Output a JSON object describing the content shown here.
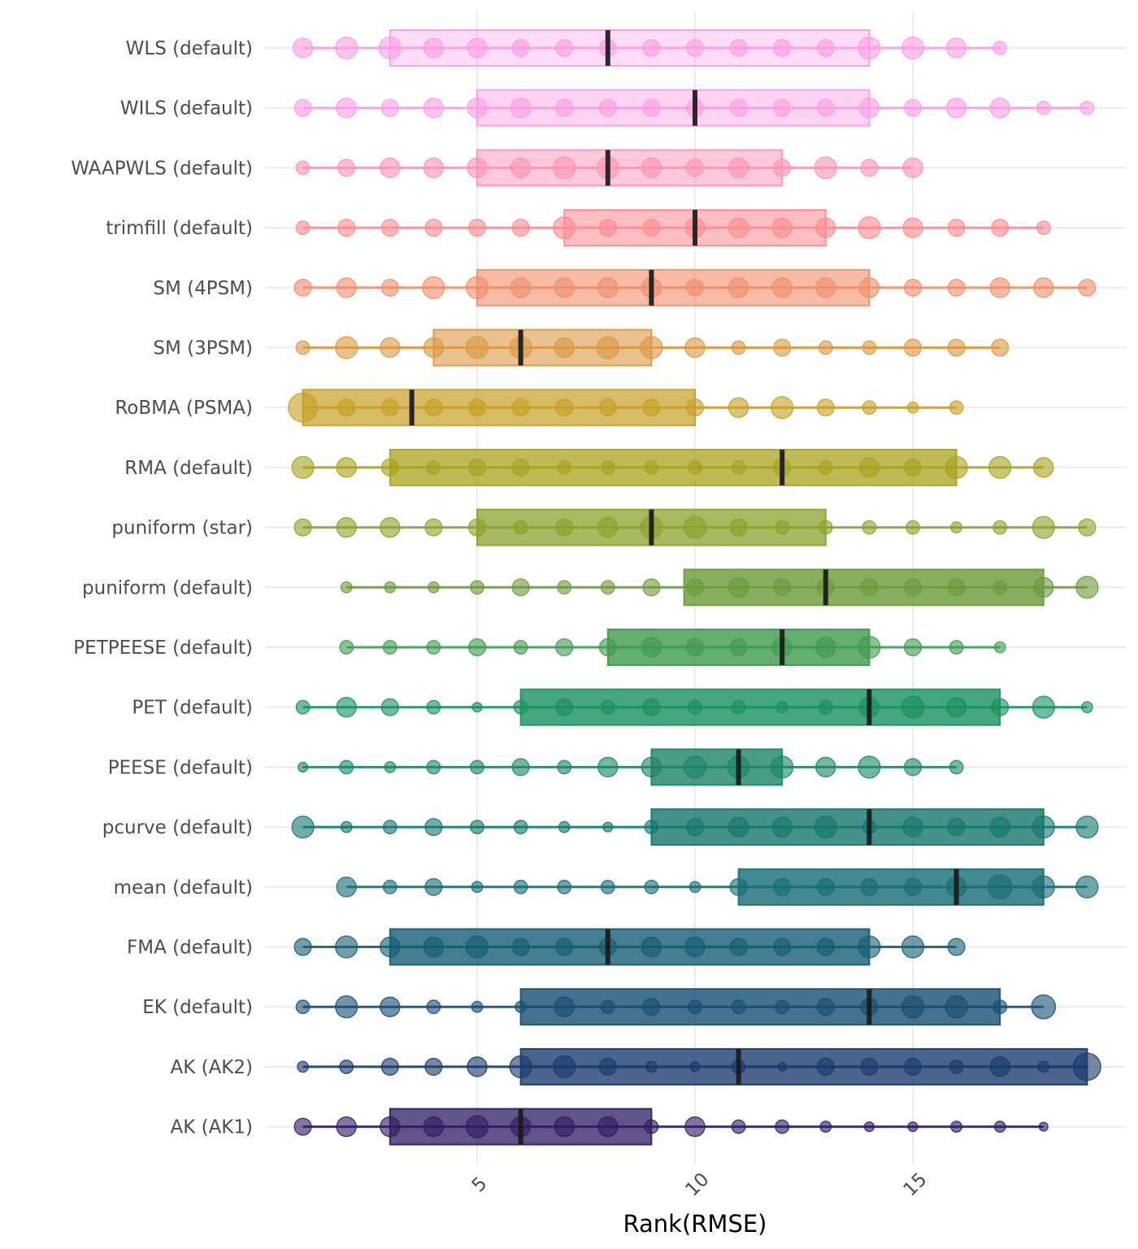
{
  "chart_data": {
    "type": "scatter",
    "subtype": "ranked dot plot with interquartile boxes and median markers",
    "title": "",
    "xlabel": "Rank(RMSE)",
    "ylabel": "",
    "xlim": [
      1,
      19
    ],
    "x_ticks": [
      5,
      10,
      15
    ],
    "x_tick_labels": [
      "5",
      "10",
      "15"
    ],
    "grid": true,
    "legend": "none",
    "categories": [
      "WLS (default)",
      "WILS (default)",
      "WAAPWLS (default)",
      "trimfill (default)",
      "SM (4PSM)",
      "SM (3PSM)",
      "RoBMA (PSMA)",
      "RMA (default)",
      "puniform (star)",
      "puniform (default)",
      "PETPEESE (default)",
      "PET (default)",
      "PEESE (default)",
      "pcurve (default)",
      "mean (default)",
      "FMA (default)",
      "EK (default)",
      "AK (AK2)",
      "AK (AK1)"
    ],
    "series": [
      {
        "name": "WLS (default)",
        "color": "#FF9BE3",
        "fill_alpha": 0.35,
        "q1": 3,
        "median": 8,
        "q3": 14,
        "ranks": [
          1,
          2,
          3,
          4,
          5,
          6,
          7,
          8,
          9,
          10,
          11,
          12,
          13,
          14,
          15,
          16,
          17
        ],
        "sizes": [
          3,
          4,
          4,
          3,
          3,
          2,
          2,
          2,
          2,
          2,
          2,
          2,
          2,
          4,
          4,
          3,
          1
        ]
      },
      {
        "name": "WILS (default)",
        "color": "#FF9BE3",
        "fill_alpha": 0.45,
        "q1": 5,
        "median": 10,
        "q3": 14,
        "ranks": [
          1,
          2,
          3,
          4,
          5,
          6,
          7,
          8,
          9,
          10,
          11,
          12,
          13,
          14,
          15,
          16,
          17,
          18,
          19
        ],
        "sizes": [
          2,
          3,
          2,
          3,
          3,
          3,
          2,
          2,
          2,
          2,
          2,
          2,
          2,
          3,
          2,
          3,
          3,
          1,
          1
        ]
      },
      {
        "name": "WAAPWLS (default)",
        "color": "#FF91B8",
        "fill_alpha": 0.5,
        "q1": 5,
        "median": 8,
        "q3": 12,
        "ranks": [
          1,
          2,
          3,
          4,
          5,
          6,
          7,
          8,
          9,
          10,
          11,
          12,
          13,
          14,
          15
        ],
        "sizes": [
          1,
          2,
          3,
          3,
          3,
          3,
          4,
          4,
          3,
          2,
          3,
          2,
          4,
          2,
          3
        ]
      },
      {
        "name": "trimfill (default)",
        "color": "#FF8A8F",
        "fill_alpha": 0.55,
        "q1": 7,
        "median": 10,
        "q3": 13,
        "ranks": [
          1,
          2,
          3,
          4,
          5,
          6,
          7,
          8,
          9,
          10,
          11,
          12,
          13,
          14,
          15,
          16,
          17,
          18
        ],
        "sizes": [
          1,
          2,
          2,
          2,
          2,
          2,
          4,
          2,
          2,
          3,
          3,
          3,
          3,
          4,
          3,
          2,
          2,
          1
        ]
      },
      {
        "name": "SM (4PSM)",
        "color": "#EE8E6D",
        "fill_alpha": 0.6,
        "q1": 5,
        "median": 9,
        "q3": 14,
        "ranks": [
          1,
          2,
          3,
          4,
          5,
          6,
          7,
          8,
          9,
          10,
          11,
          12,
          13,
          14,
          15,
          16,
          17,
          18,
          19
        ],
        "sizes": [
          2,
          3,
          2,
          4,
          4,
          3,
          3,
          3,
          3,
          2,
          3,
          3,
          3,
          3,
          2,
          2,
          3,
          3,
          2
        ]
      },
      {
        "name": "SM (3PSM)",
        "color": "#DB9743",
        "fill_alpha": 0.6,
        "q1": 4,
        "median": 6,
        "q3": 9,
        "ranks": [
          1,
          2,
          3,
          4,
          5,
          6,
          7,
          8,
          9,
          10,
          11,
          12,
          13,
          14,
          15,
          16,
          17
        ],
        "sizes": [
          1,
          4,
          3,
          3,
          4,
          4,
          3,
          4,
          4,
          3,
          1,
          2,
          1,
          1,
          2,
          2,
          2
        ]
      },
      {
        "name": "RoBMA (PSMA)",
        "color": "#C79F23",
        "fill_alpha": 0.7,
        "q1": 1,
        "median": 3.5,
        "q3": 10,
        "ranks": [
          1,
          2,
          3,
          4,
          5,
          6,
          7,
          8,
          9,
          10,
          11,
          12,
          13,
          14,
          15,
          16
        ],
        "sizes": [
          8,
          2,
          2,
          2,
          2,
          2,
          2,
          2,
          2,
          2,
          3,
          4,
          2,
          1,
          0.5,
          1
        ]
      },
      {
        "name": "RMA (default)",
        "color": "#A9A21D",
        "fill_alpha": 0.75,
        "q1": 3,
        "median": 12,
        "q3": 16,
        "ranks": [
          1,
          2,
          3,
          4,
          5,
          6,
          7,
          8,
          9,
          10,
          11,
          12,
          13,
          14,
          15,
          16,
          17,
          18
        ],
        "sizes": [
          4,
          3,
          2,
          1,
          2,
          2,
          1,
          1,
          1,
          1,
          1,
          2,
          1,
          3,
          2,
          4,
          4,
          3
        ]
      },
      {
        "name": "puniform (star)",
        "color": "#8BA12A",
        "fill_alpha": 0.75,
        "q1": 5,
        "median": 9,
        "q3": 13,
        "ranks": [
          1,
          2,
          3,
          4,
          5,
          6,
          7,
          8,
          9,
          10,
          11,
          12,
          13,
          14,
          15,
          16,
          17,
          18,
          19
        ],
        "sizes": [
          2,
          3,
          3,
          2,
          2,
          1,
          2,
          3,
          4,
          4,
          2,
          1,
          1,
          1,
          1,
          0.5,
          1,
          4,
          2
        ]
      },
      {
        "name": "puniform (default)",
        "color": "#6A9A3A",
        "fill_alpha": 0.8,
        "q1": 9.75,
        "median": 13,
        "q3": 18,
        "ranks": [
          2,
          3,
          4,
          5,
          6,
          7,
          8,
          9,
          10,
          11,
          12,
          13,
          14,
          15,
          16,
          17,
          18,
          19
        ],
        "sizes": [
          0.5,
          0.5,
          0.5,
          1,
          2,
          1,
          1,
          2,
          2,
          3,
          2,
          2,
          2,
          2,
          2,
          1,
          3,
          4
        ]
      },
      {
        "name": "PETPEESE (default)",
        "color": "#3F9A4E",
        "fill_alpha": 0.8,
        "q1": 8,
        "median": 12,
        "q3": 14,
        "ranks": [
          2,
          3,
          4,
          5,
          6,
          7,
          8,
          9,
          10,
          11,
          12,
          13,
          14,
          15,
          16,
          17
        ],
        "sizes": [
          1,
          1,
          1,
          2,
          1,
          2,
          2,
          3,
          2,
          2,
          3,
          3,
          4,
          2,
          1,
          0.5
        ]
      },
      {
        "name": "PET (default)",
        "color": "#18905C",
        "fill_alpha": 0.8,
        "q1": 6,
        "median": 14,
        "q3": 17,
        "ranks": [
          1,
          2,
          3,
          4,
          5,
          6,
          7,
          8,
          9,
          10,
          11,
          12,
          13,
          14,
          15,
          16,
          17,
          18,
          19
        ],
        "sizes": [
          1,
          3,
          2,
          1,
          0.3,
          1,
          2,
          1,
          2,
          1,
          1,
          0.5,
          1,
          3,
          4,
          3,
          2,
          4,
          0.5
        ]
      },
      {
        "name": "PEESE (default)",
        "color": "#1B8467",
        "fill_alpha": 0.8,
        "q1": 9,
        "median": 11,
        "q3": 12,
        "ranks": [
          1,
          2,
          3,
          4,
          5,
          6,
          7,
          8,
          9,
          10,
          11,
          12,
          13,
          14,
          15,
          16
        ],
        "sizes": [
          0.3,
          1,
          0.5,
          1,
          1,
          2,
          1,
          3,
          3,
          4,
          4,
          4,
          3,
          4,
          2,
          1
        ]
      },
      {
        "name": "pcurve (default)",
        "color": "#14766C",
        "fill_alpha": 0.8,
        "q1": 9,
        "median": 14,
        "q3": 18,
        "ranks": [
          1,
          2,
          3,
          4,
          5,
          6,
          7,
          8,
          9,
          10,
          11,
          12,
          13,
          14,
          15,
          16,
          17,
          18,
          19
        ],
        "sizes": [
          4,
          0.5,
          1,
          2,
          1,
          1,
          0.5,
          0.3,
          1,
          2,
          3,
          3,
          4,
          1,
          3,
          2,
          3,
          4,
          4
        ]
      },
      {
        "name": "mean (default)",
        "color": "#156B74",
        "fill_alpha": 0.8,
        "q1": 11,
        "median": 16,
        "q3": 18,
        "ranks": [
          2,
          3,
          4,
          5,
          6,
          7,
          8,
          9,
          10,
          11,
          12,
          13,
          14,
          15,
          16,
          17,
          18,
          19
        ],
        "sizes": [
          3,
          1,
          2,
          0.5,
          1,
          1,
          1,
          1,
          0.5,
          2,
          2,
          2,
          2,
          2,
          3,
          5,
          4,
          4
        ]
      },
      {
        "name": "FMA (default)",
        "color": "#145C73",
        "fill_alpha": 0.8,
        "q1": 3,
        "median": 8,
        "q3": 14,
        "ranks": [
          1,
          2,
          3,
          4,
          5,
          6,
          7,
          8,
          9,
          10,
          11,
          12,
          13,
          14,
          15,
          16
        ],
        "sizes": [
          2,
          4,
          3,
          3,
          4,
          2,
          2,
          2,
          3,
          3,
          2,
          2,
          2,
          4,
          4,
          2
        ]
      },
      {
        "name": "EK (default)",
        "color": "#154D71",
        "fill_alpha": 0.8,
        "q1": 6,
        "median": 14,
        "q3": 17,
        "ranks": [
          1,
          2,
          3,
          4,
          5,
          6,
          7,
          8,
          9,
          10,
          11,
          12,
          13,
          14,
          15,
          16,
          17,
          18
        ],
        "sizes": [
          1,
          4,
          3,
          1,
          0.5,
          0.5,
          3,
          1,
          2,
          1,
          1,
          1,
          2,
          2,
          4,
          4,
          1,
          5
        ]
      },
      {
        "name": "AK (AK2)",
        "color": "#17396B",
        "fill_alpha": 0.78,
        "q1": 6,
        "median": 11,
        "q3": 19,
        "ranks": [
          1,
          2,
          3,
          4,
          5,
          6,
          7,
          8,
          9,
          10,
          11,
          12,
          13,
          14,
          15,
          16,
          17,
          18,
          19
        ],
        "sizes": [
          0.5,
          1,
          2,
          2,
          3,
          4,
          4,
          2,
          0.5,
          0.3,
          1,
          0.2,
          2,
          2,
          2,
          1,
          3,
          0.5,
          7
        ]
      },
      {
        "name": "AK (AK1)",
        "color": "#2E1A62",
        "fill_alpha": 0.75,
        "q1": 3,
        "median": 6,
        "q3": 9,
        "ranks": [
          1,
          2,
          3,
          4,
          5,
          6,
          7,
          8,
          9,
          10,
          11,
          12,
          13,
          14,
          15,
          16,
          17,
          18
        ],
        "sizes": [
          2,
          3,
          3,
          3,
          4,
          3,
          3,
          3,
          1,
          3,
          1,
          1,
          0.5,
          0.3,
          0.3,
          0.5,
          0.5,
          0.2
        ]
      }
    ]
  }
}
